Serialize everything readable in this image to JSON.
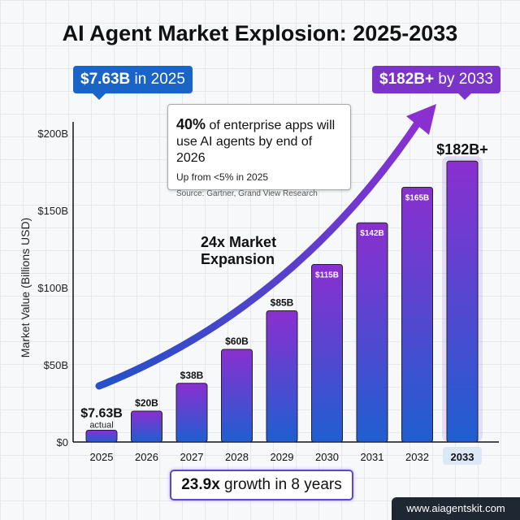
{
  "title": "AI Agent Market Explosion: 2025-2033",
  "callout_start": {
    "value": "$7.63B",
    "text": " in 2025",
    "color": "#1a64c8"
  },
  "callout_end": {
    "value": "$182B+",
    "text": " by 2033",
    "color": "#7b34c8"
  },
  "info_box": {
    "highlight": "40%",
    "headline": " of enterprise apps will use AI agents by end of 2026",
    "subtext": "Up from <5% in 2025",
    "source": "Source: Gartner, Grand View Research"
  },
  "arrow_label": [
    "24x Market",
    "Expansion"
  ],
  "growth_box": {
    "value": "23.9x",
    "text": " growth in 8 years"
  },
  "website": "www.aiagentskit.com",
  "chart_data": {
    "type": "bar",
    "title": "AI Agent Market Explosion: 2025-2033",
    "ylabel": "Market Value (Billions USD)",
    "xlabel": "",
    "ylim": [
      0,
      200
    ],
    "yticks": [
      0,
      50,
      100,
      150,
      200
    ],
    "ytick_labels": [
      "$0",
      "$50B",
      "$100B",
      "$150B",
      "$200B"
    ],
    "grid": true,
    "categories": [
      "2025",
      "2026",
      "2027",
      "2028",
      "2029",
      "2030",
      "2031",
      "2032",
      "2033"
    ],
    "values": [
      7.63,
      20,
      38,
      60,
      85,
      115,
      142,
      165,
      182
    ],
    "data_labels": [
      "$7.63B",
      "$20B",
      "$38B",
      "$60B",
      "$85B",
      "$115B",
      "$142B",
      "$165B",
      "$182B+"
    ],
    "annotations": {
      "first_bar_sub": "actual"
    },
    "colors": {
      "bottom": "#1f5fd0",
      "top": "#8a2fd0"
    }
  }
}
